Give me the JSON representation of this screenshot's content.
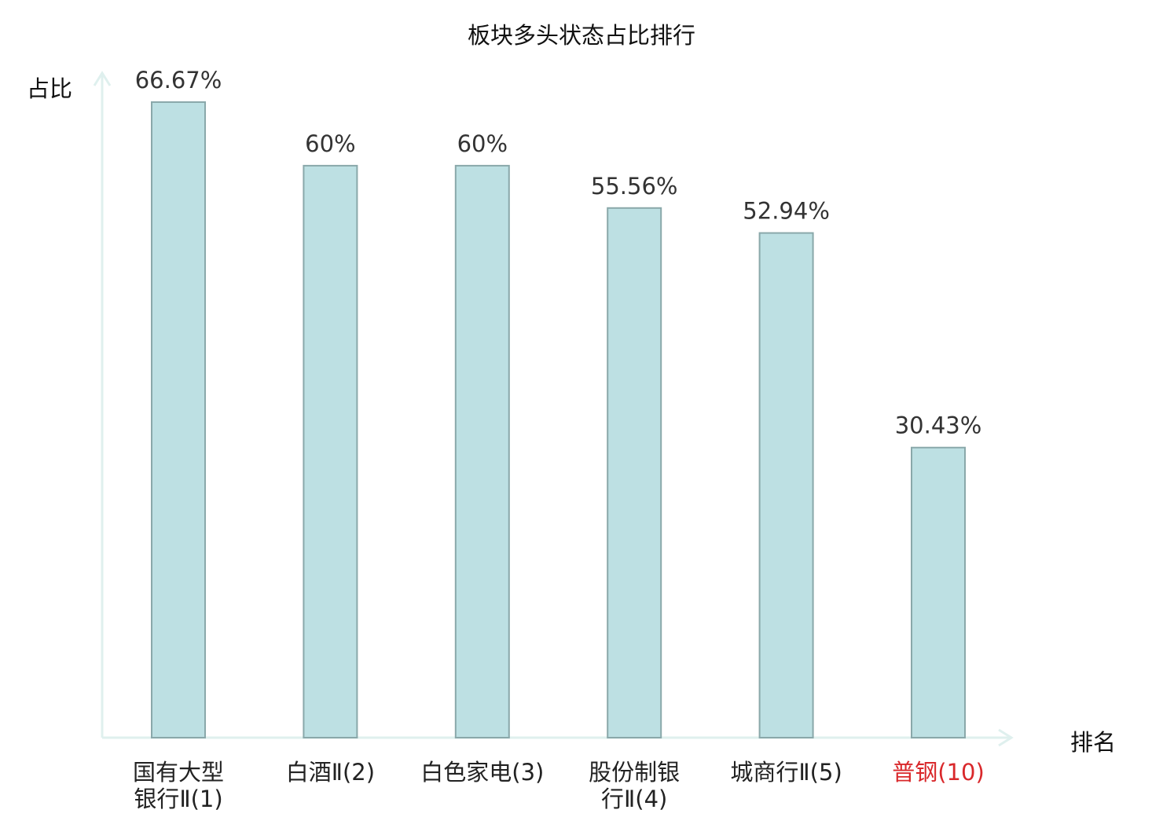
{
  "chart_data": {
    "type": "bar",
    "title": "板块多头状态占比排行",
    "ylabel": "占比",
    "xlabel": "排名",
    "ylim": [
      0,
      70
    ],
    "grid": false,
    "categories": [
      {
        "text": "国有大型银行Ⅱ(1)",
        "lines": [
          "国有大型",
          "银行Ⅱ(1)"
        ],
        "highlight": false
      },
      {
        "text": "白酒Ⅱ(2)",
        "lines": [
          "白酒Ⅱ(2)"
        ],
        "highlight": false
      },
      {
        "text": "白色家电(3)",
        "lines": [
          "白色家电(3)"
        ],
        "highlight": false
      },
      {
        "text": "股份制银行Ⅱ(4)",
        "lines": [
          "股份制银",
          "行Ⅱ(4)"
        ],
        "highlight": false
      },
      {
        "text": "城商行Ⅱ(5)",
        "lines": [
          "城商行Ⅱ(5)"
        ],
        "highlight": false
      },
      {
        "text": "普钢(10)",
        "lines": [
          "普钢(10)"
        ],
        "highlight": true
      }
    ],
    "values": [
      66.67,
      60,
      60,
      55.56,
      52.94,
      30.43
    ],
    "data_labels": [
      "66.67%",
      "60%",
      "60%",
      "55.56%",
      "52.94%",
      "30.43%"
    ]
  },
  "colors": {
    "bar_fill": "#bde0e3",
    "bar_stroke": "#8aa8aa",
    "axis": "#dff0ee",
    "highlight_label": "#d9282b",
    "label": "#222222"
  }
}
